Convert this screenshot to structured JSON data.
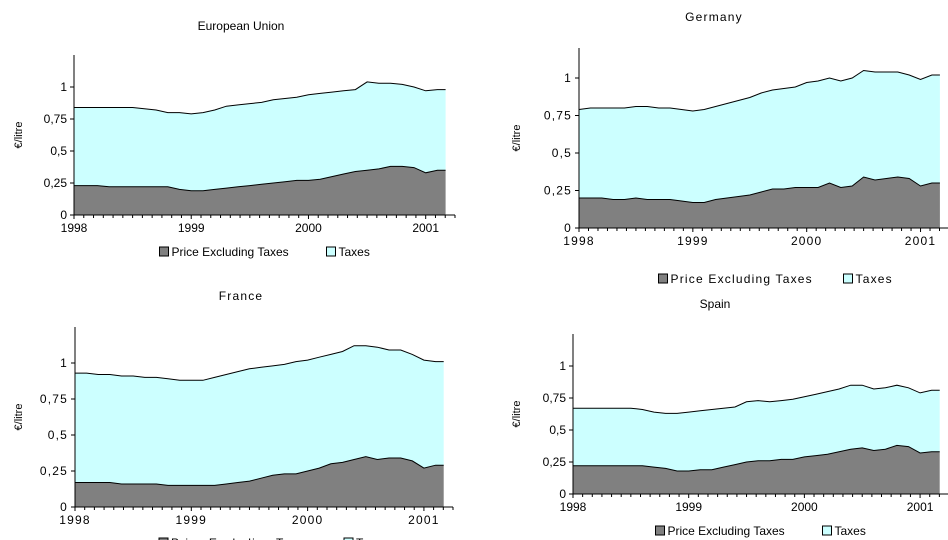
{
  "chart_data": [
    {
      "type": "area",
      "title": "European Union",
      "ylabel": "€/litre",
      "xlabel": "",
      "xlim": [
        1998,
        2001.25
      ],
      "ylim": [
        0,
        1.25
      ],
      "yticks": [
        "0",
        "0,25",
        "0,5",
        "0,75",
        "1"
      ],
      "xticks": [
        "1998",
        "1999",
        "2000",
        "2001"
      ],
      "legend": [
        "Price Excluding Taxes",
        "Taxes"
      ],
      "legend_position": "bottom",
      "stacked": true,
      "x": [
        1998.0,
        1998.1,
        1998.2,
        1998.3,
        1998.4,
        1998.5,
        1998.6,
        1998.7,
        1998.8,
        1998.9,
        1999.0,
        1999.1,
        1999.2,
        1999.3,
        1999.4,
        1999.5,
        1999.6,
        1999.7,
        1999.8,
        1999.9,
        2000.0,
        2000.1,
        2000.2,
        2000.3,
        2000.4,
        2000.5,
        2000.6,
        2000.7,
        2000.8,
        2000.9,
        2001.0,
        2001.1,
        2001.17
      ],
      "series": [
        {
          "name": "Price Excluding Taxes",
          "values": [
            0.23,
            0.23,
            0.23,
            0.22,
            0.22,
            0.22,
            0.22,
            0.22,
            0.22,
            0.2,
            0.19,
            0.19,
            0.2,
            0.21,
            0.22,
            0.23,
            0.24,
            0.25,
            0.26,
            0.27,
            0.27,
            0.28,
            0.3,
            0.32,
            0.34,
            0.35,
            0.36,
            0.38,
            0.38,
            0.37,
            0.33,
            0.35,
            0.35
          ]
        },
        {
          "name": "Taxes",
          "values": [
            0.61,
            0.61,
            0.61,
            0.62,
            0.62,
            0.62,
            0.61,
            0.6,
            0.58,
            0.6,
            0.6,
            0.61,
            0.62,
            0.64,
            0.64,
            0.64,
            0.64,
            0.65,
            0.65,
            0.65,
            0.67,
            0.67,
            0.66,
            0.65,
            0.64,
            0.69,
            0.67,
            0.65,
            0.64,
            0.63,
            0.64,
            0.63,
            0.63
          ]
        }
      ]
    },
    {
      "type": "area",
      "title": "Germany",
      "ylabel": "€/litre",
      "xlabel": "",
      "xlim": [
        1998,
        2001.25
      ],
      "ylim": [
        0,
        1.2
      ],
      "yticks": [
        "0",
        "0,25",
        "0,5",
        "0,75",
        "1"
      ],
      "xticks": [
        "1998",
        "1999",
        "2000",
        "2001"
      ],
      "legend": [
        "Price Excluding Taxes",
        "Taxes"
      ],
      "legend_position": "bottom",
      "stacked": true,
      "x": [
        1998.0,
        1998.1,
        1998.2,
        1998.3,
        1998.4,
        1998.5,
        1998.6,
        1998.7,
        1998.8,
        1998.9,
        1999.0,
        1999.1,
        1999.2,
        1999.3,
        1999.4,
        1999.5,
        1999.6,
        1999.7,
        1999.8,
        1999.9,
        2000.0,
        2000.1,
        2000.2,
        2000.3,
        2000.4,
        2000.5,
        2000.6,
        2000.7,
        2000.8,
        2000.9,
        2001.0,
        2001.1,
        2001.17
      ],
      "series": [
        {
          "name": "Price Excluding Taxes",
          "values": [
            0.2,
            0.2,
            0.2,
            0.19,
            0.19,
            0.2,
            0.19,
            0.19,
            0.19,
            0.18,
            0.17,
            0.17,
            0.19,
            0.2,
            0.21,
            0.22,
            0.24,
            0.26,
            0.26,
            0.27,
            0.27,
            0.27,
            0.3,
            0.27,
            0.28,
            0.34,
            0.32,
            0.33,
            0.34,
            0.33,
            0.28,
            0.3,
            0.3
          ]
        },
        {
          "name": "Taxes",
          "values": [
            0.59,
            0.6,
            0.6,
            0.61,
            0.61,
            0.61,
            0.62,
            0.61,
            0.61,
            0.61,
            0.61,
            0.62,
            0.62,
            0.63,
            0.64,
            0.65,
            0.66,
            0.66,
            0.67,
            0.67,
            0.7,
            0.71,
            0.7,
            0.71,
            0.72,
            0.71,
            0.72,
            0.71,
            0.7,
            0.69,
            0.71,
            0.72,
            0.72
          ]
        }
      ]
    },
    {
      "type": "area",
      "title": "France",
      "ylabel": "€/litre",
      "xlabel": "",
      "xlim": [
        1998,
        2001.25
      ],
      "ylim": [
        0,
        1.25
      ],
      "yticks": [
        "0",
        "0,25",
        "0,5",
        "0,75",
        "1"
      ],
      "xticks": [
        "1998",
        "1999",
        "2000",
        "2001"
      ],
      "legend": [
        "Price Excluding Taxes",
        "Taxes"
      ],
      "legend_position": "bottom",
      "stacked": true,
      "x": [
        1998.0,
        1998.1,
        1998.2,
        1998.3,
        1998.4,
        1998.5,
        1998.6,
        1998.7,
        1998.8,
        1998.9,
        1999.0,
        1999.1,
        1999.2,
        1999.3,
        1999.4,
        1999.5,
        1999.6,
        1999.7,
        1999.8,
        1999.9,
        2000.0,
        2000.1,
        2000.2,
        2000.3,
        2000.4,
        2000.5,
        2000.6,
        2000.7,
        2000.8,
        2000.9,
        2001.0,
        2001.1,
        2001.17
      ],
      "series": [
        {
          "name": "Price Excluding Taxes",
          "values": [
            0.17,
            0.17,
            0.17,
            0.17,
            0.16,
            0.16,
            0.16,
            0.16,
            0.15,
            0.15,
            0.15,
            0.15,
            0.15,
            0.16,
            0.17,
            0.18,
            0.2,
            0.22,
            0.23,
            0.23,
            0.25,
            0.27,
            0.3,
            0.31,
            0.33,
            0.35,
            0.33,
            0.34,
            0.34,
            0.32,
            0.27,
            0.29,
            0.29
          ]
        },
        {
          "name": "Taxes",
          "values": [
            0.76,
            0.76,
            0.75,
            0.75,
            0.75,
            0.75,
            0.74,
            0.74,
            0.74,
            0.73,
            0.73,
            0.73,
            0.75,
            0.76,
            0.77,
            0.78,
            0.77,
            0.76,
            0.76,
            0.78,
            0.77,
            0.77,
            0.76,
            0.77,
            0.79,
            0.77,
            0.78,
            0.75,
            0.75,
            0.74,
            0.75,
            0.72,
            0.72
          ]
        }
      ]
    },
    {
      "type": "area",
      "title": "Spain",
      "ylabel": "€/litre",
      "xlabel": "",
      "xlim": [
        1998,
        2001.25
      ],
      "ylim": [
        0,
        1.25
      ],
      "yticks": [
        "0",
        "0,25",
        "0,5",
        "0,75",
        "1"
      ],
      "xticks": [
        "1998",
        "1999",
        "2000",
        "2001"
      ],
      "legend": [
        "Price Excluding Taxes",
        "Taxes"
      ],
      "legend_position": "bottom",
      "stacked": true,
      "x": [
        1998.0,
        1998.1,
        1998.2,
        1998.3,
        1998.4,
        1998.5,
        1998.6,
        1998.7,
        1998.8,
        1998.9,
        1999.0,
        1999.1,
        1999.2,
        1999.3,
        1999.4,
        1999.5,
        1999.6,
        1999.7,
        1999.8,
        1999.9,
        2000.0,
        2000.1,
        2000.2,
        2000.3,
        2000.4,
        2000.5,
        2000.6,
        2000.7,
        2000.8,
        2000.9,
        2001.0,
        2001.1,
        2001.17
      ],
      "series": [
        {
          "name": "Price Excluding Taxes",
          "values": [
            0.22,
            0.22,
            0.22,
            0.22,
            0.22,
            0.22,
            0.22,
            0.21,
            0.2,
            0.18,
            0.18,
            0.19,
            0.19,
            0.21,
            0.23,
            0.25,
            0.26,
            0.26,
            0.27,
            0.27,
            0.29,
            0.3,
            0.31,
            0.33,
            0.35,
            0.36,
            0.34,
            0.35,
            0.38,
            0.37,
            0.32,
            0.33,
            0.33
          ]
        },
        {
          "name": "Taxes",
          "values": [
            0.45,
            0.45,
            0.45,
            0.45,
            0.45,
            0.45,
            0.44,
            0.43,
            0.43,
            0.45,
            0.46,
            0.46,
            0.47,
            0.46,
            0.45,
            0.47,
            0.47,
            0.46,
            0.46,
            0.47,
            0.47,
            0.48,
            0.49,
            0.49,
            0.5,
            0.49,
            0.48,
            0.48,
            0.47,
            0.46,
            0.47,
            0.48,
            0.48
          ]
        }
      ]
    }
  ],
  "colors": {
    "price_fill": "#808080",
    "taxes_fill": "#ccffff",
    "line": "#000000",
    "background": "#ffffff"
  }
}
